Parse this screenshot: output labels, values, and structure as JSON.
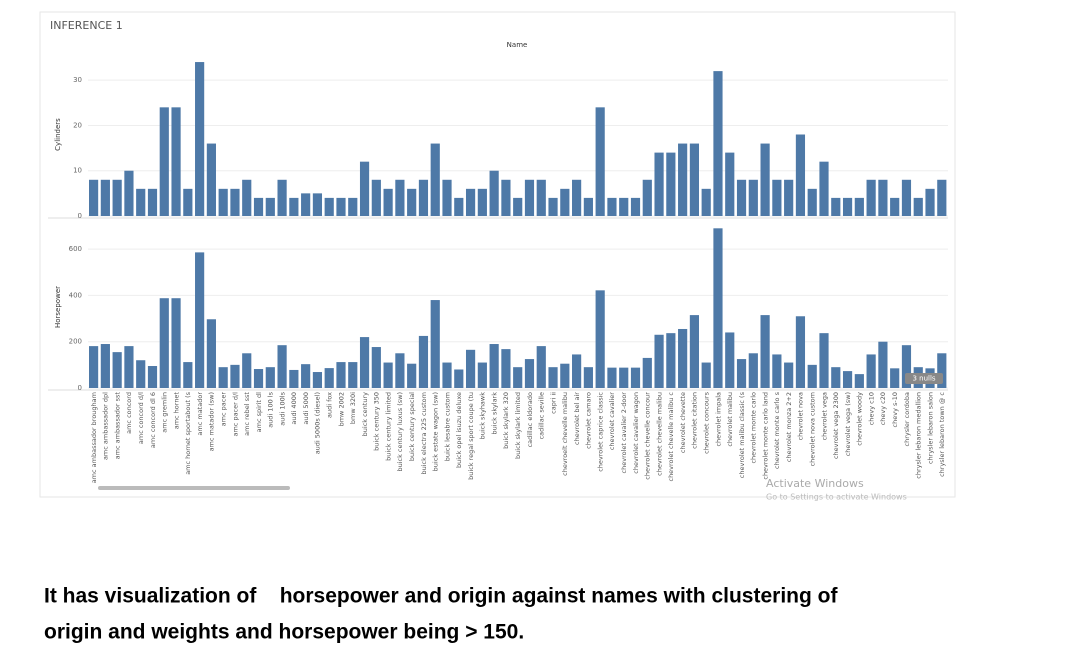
{
  "title": "INFERENCE 1",
  "watermark": [
    "Activate Windows",
    "Go to Settings to activate Windows"
  ],
  "caption": [
    "It has visualization of    horsepower and origin against names with clustering of",
    "origin and weights and horsepower being > 150."
  ],
  "chart_data": [
    {
      "type": "bar",
      "x_label": "Name",
      "y_label": "Cylinders",
      "color": "#4e79a7",
      "grid": true,
      "ylim": [
        0,
        36
      ],
      "yticks": [
        0,
        10,
        20,
        30
      ],
      "values": [
        8,
        8,
        8,
        10,
        6,
        6,
        24,
        24,
        6,
        34,
        16,
        6,
        6,
        8,
        4,
        4,
        8,
        4,
        5,
        5,
        4,
        4,
        4,
        12,
        8,
        6,
        8,
        6,
        8,
        16,
        8,
        4,
        6,
        6,
        10,
        8,
        4,
        8,
        8,
        4,
        6,
        8,
        4,
        24,
        4,
        4,
        4,
        8,
        14,
        14,
        16,
        16,
        6,
        32,
        14,
        8,
        8,
        16,
        8,
        8,
        18,
        6,
        12,
        4,
        4,
        4,
        8,
        8,
        4,
        8,
        4,
        6,
        8
      ]
    },
    {
      "type": "bar",
      "y_label": "Horsepower",
      "color": "#4e79a7",
      "grid": true,
      "ylim": [
        0,
        700
      ],
      "yticks": [
        0,
        200,
        400,
        600
      ],
      "annotation": "3 nulls",
      "categories": [
        "amc ambassador brougham",
        "amc ambassador dpl",
        "amc ambassador sst",
        "amc concord",
        "amc concord d/l",
        "amc concord dl 6",
        "amc gremlin",
        "amc hornet",
        "amc hornet sportabout (s",
        "amc matador",
        "amc matador (sw)",
        "amc pacer",
        "amc pacer d/l",
        "amc rebel sst",
        "amc spirit dl",
        "audi 100 ls",
        "audi 100ls",
        "audi 4000",
        "audi 5000",
        "audi 5000s (diesel)",
        "audi fox",
        "bmw 2002",
        "bmw 320i",
        "buick century",
        "buick century 350",
        "buick century limited",
        "buick century luxus (sw)",
        "buick century special",
        "buick electra 225 custom",
        "buick estate wagon (sw)",
        "buick lesabre custom",
        "buick opel isuzu deluxe",
        "buick regal sport coupe (tu",
        "buick skyhawk",
        "buick skylark",
        "buick skylark 320",
        "buick skylark limited",
        "cadillac eldorado",
        "cadillac seville",
        "capri ii",
        "chevroelt chevelle malibu",
        "chevrolet bel air",
        "chevrolet camaro",
        "chevrolet caprice classic",
        "chevrolet cavalier",
        "chevrolet cavalier 2-door",
        "chevrolet cavalier wagon",
        "chevrolet chevelle concour",
        "chevrolet chevelle malibu",
        "chevrolet chevelle malibu c",
        "chevrolet chevette",
        "chevrolet citation",
        "chevrolet concours",
        "chevrolet impala",
        "chevrolet malibu",
        "chevrolet malibu classic (s",
        "chevrolet monte carlo",
        "chevrolet monte carlo land",
        "chevrolet monte carlo s",
        "chevrolet monza 2+2",
        "chevrolet nova",
        "chevrolet nova custom",
        "chevrolet vega",
        "chevrolet vega 2300",
        "chevrolet vega (sw)",
        "chevrolet woody",
        "chevy c10",
        "chevy c20",
        "chevy s-10",
        "chrysler cordoba",
        "chrysler lebaron medallion",
        "chrysler lebaron salon",
        "chrysler lebaron town @ c"
      ],
      "values": [
        181,
        190,
        155,
        181,
        120,
        95,
        388,
        388,
        112,
        586,
        297,
        90,
        100,
        150,
        82,
        90,
        185,
        78,
        103,
        69,
        86,
        112,
        112,
        220,
        177,
        110,
        150,
        105,
        225,
        380,
        110,
        80,
        165,
        110,
        190,
        168,
        90,
        125,
        181,
        90,
        105,
        145,
        90,
        422,
        88,
        88,
        88,
        130,
        230,
        237,
        255,
        315,
        110,
        690,
        240,
        125,
        150,
        315,
        145,
        110,
        310,
        100,
        237,
        90,
        73,
        60,
        145,
        200,
        85,
        185,
        90,
        85,
        150
      ]
    }
  ]
}
